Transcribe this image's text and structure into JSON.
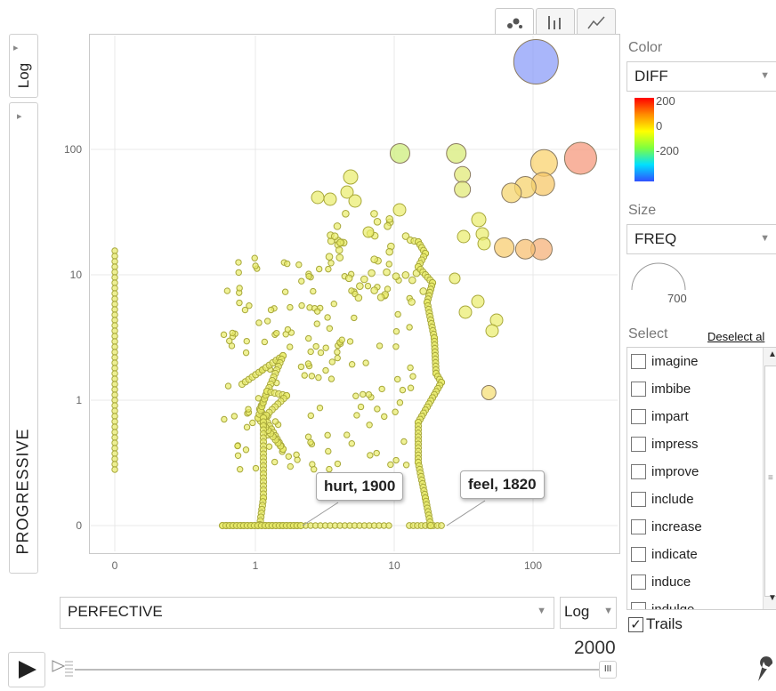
{
  "chart_data": {
    "type": "scatter",
    "x_label": "PERFECTIVE",
    "y_label": "PROGRESSIVE",
    "x_scale": "Log",
    "y_scale": "Log",
    "x_ticks": [
      "0",
      "1",
      "10",
      "100"
    ],
    "y_ticks": [
      "100",
      "10",
      "1",
      "0"
    ],
    "year": "2000",
    "annotations": [
      {
        "label": "hurt, 1900",
        "x": 1.7,
        "y": 0
      },
      {
        "label": "feel, 1820",
        "x": 21,
        "y": 0
      }
    ],
    "big_bubbles": [
      {
        "x": 105,
        "y": 500,
        "color": "#8c9ef8",
        "r": 25
      },
      {
        "x": 220,
        "y": 85,
        "color": "#f59a7e",
        "r": 18
      },
      {
        "x": 120,
        "y": 78,
        "color": "#f9d36f",
        "r": 15
      },
      {
        "x": 118,
        "y": 53,
        "color": "#f7c86a",
        "r": 13
      },
      {
        "x": 88,
        "y": 50,
        "color": "#f6d36e",
        "r": 12
      },
      {
        "x": 70,
        "y": 45,
        "color": "#f6d570",
        "r": 11
      },
      {
        "x": 115,
        "y": 16,
        "color": "#f6b27a",
        "r": 12
      },
      {
        "x": 88,
        "y": 16,
        "color": "#f7c073",
        "r": 11
      },
      {
        "x": 62,
        "y": 16.5,
        "color": "#f8cd72",
        "r": 11
      },
      {
        "x": 11,
        "y": 93,
        "color": "#cdee7c",
        "r": 11
      },
      {
        "x": 28,
        "y": 93,
        "color": "#d8ec7a",
        "r": 11
      },
      {
        "x": 31,
        "y": 63,
        "color": "#e2ea78",
        "r": 9
      },
      {
        "x": 31,
        "y": 48,
        "color": "#e2ea78",
        "r": 9
      },
      {
        "x": 48,
        "y": 1.15,
        "color": "#f6df78",
        "r": 8
      }
    ]
  },
  "ui": {
    "tabs": [
      "bubbles-icon",
      "bars-icon",
      "line-icon"
    ],
    "y_scale_button": "Log",
    "x_scale_button": "Log",
    "x_axis_select": "PERFECTIVE",
    "color_label": "Color",
    "color_select": "DIFF",
    "color_scale": [
      "200",
      "0",
      "-200"
    ],
    "size_label": "Size",
    "size_select": "FREQ",
    "size_value": "700",
    "select_label": "Select",
    "deselect_label": "Deselect al",
    "select_items": [
      "imagine",
      "imbibe",
      "impart",
      "impress",
      "improve",
      "include",
      "increase",
      "indicate",
      "induce",
      "indulge"
    ],
    "trails_label": "Trails",
    "play_icon": "play-icon",
    "wrench_icon": "wrench-icon"
  }
}
